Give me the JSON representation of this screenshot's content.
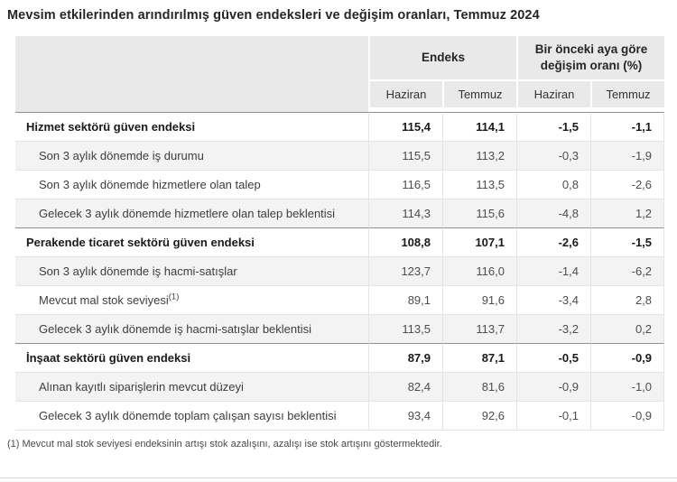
{
  "title": "Mevsim etkilerinden arındırılmış güven endeksleri ve değişim oranları, Temmuz 2024",
  "footnote": "(1) Mevcut mal stok seviyesi endeksinin artışı stok azalışını, azalışı ise stok artışını göstermektedir.",
  "colors": {
    "header_bg": "#e9e9e9",
    "stripe_bg": "#f3f3f3",
    "row_border": "#e4e4e4",
    "section_border": "#8f8f8f",
    "title_text": "#262626",
    "body_text": "#404040",
    "bottom_divider": "#d6d6d6"
  },
  "chart_data": {
    "type": "table",
    "title": "Mevsim etkilerinden arındırılmış güven endeksleri ve değişim oranları, Temmuz 2024",
    "column_groups": [
      {
        "label": "Endeks",
        "span": 2
      },
      {
        "label": "Bir önceki aya göre değişim oranı (%)",
        "span": 2
      }
    ],
    "columns": [
      "Haziran",
      "Temmuz",
      "Haziran",
      "Temmuz"
    ],
    "rows": [
      {
        "label": "Hizmet sektörü güven endeksi",
        "section": true,
        "values": [
          115.4,
          114.1,
          -1.5,
          -1.1
        ],
        "display": [
          "115,4",
          "114,1",
          "-1,5",
          "-1,1"
        ]
      },
      {
        "label": "Son 3 aylık dönemde iş durumu",
        "section": false,
        "values": [
          115.5,
          113.2,
          -0.3,
          -1.9
        ],
        "display": [
          "115,5",
          "113,2",
          "-0,3",
          "-1,9"
        ]
      },
      {
        "label": "Son 3 aylık dönemde hizmetlere olan talep",
        "section": false,
        "values": [
          116.5,
          113.5,
          0.8,
          -2.6
        ],
        "display": [
          "116,5",
          "113,5",
          "0,8",
          "-2,6"
        ]
      },
      {
        "label": "Gelecek 3 aylık dönemde hizmetlere olan talep beklentisi",
        "section": false,
        "values": [
          114.3,
          115.6,
          -4.8,
          1.2
        ],
        "display": [
          "114,3",
          "115,6",
          "-4,8",
          "1,2"
        ]
      },
      {
        "label": "Perakende ticaret sektörü güven endeksi",
        "section": true,
        "values": [
          108.8,
          107.1,
          -2.6,
          -1.5
        ],
        "display": [
          "108,8",
          "107,1",
          "-2,6",
          "-1,5"
        ]
      },
      {
        "label": "Son 3 aylık dönemde iş hacmi-satışlar",
        "section": false,
        "values": [
          123.7,
          116.0,
          -1.4,
          -6.2
        ],
        "display": [
          "123,7",
          "116,0",
          "-1,4",
          "-6,2"
        ]
      },
      {
        "label": "Mevcut mal stok seviyesi",
        "sup": "(1)",
        "section": false,
        "values": [
          89.1,
          91.6,
          -3.4,
          2.8
        ],
        "display": [
          "89,1",
          "91,6",
          "-3,4",
          "2,8"
        ]
      },
      {
        "label": "Gelecek 3 aylık dönemde iş hacmi-satışlar beklentisi",
        "section": false,
        "values": [
          113.5,
          113.7,
          -3.2,
          0.2
        ],
        "display": [
          "113,5",
          "113,7",
          "-3,2",
          "0,2"
        ]
      },
      {
        "label": "İnşaat sektörü güven endeksi",
        "section": true,
        "values": [
          87.9,
          87.1,
          -0.5,
          -0.9
        ],
        "display": [
          "87,9",
          "87,1",
          "-0,5",
          "-0,9"
        ]
      },
      {
        "label": "Alınan kayıtlı siparişlerin mevcut düzeyi",
        "section": false,
        "values": [
          82.4,
          81.6,
          -0.9,
          -1.0
        ],
        "display": [
          "82,4",
          "81,6",
          "-0,9",
          "-1,0"
        ]
      },
      {
        "label": "Gelecek 3 aylık dönemde toplam çalışan sayısı beklentisi",
        "section": false,
        "values": [
          93.4,
          92.6,
          -0.1,
          -0.9
        ],
        "display": [
          "93,4",
          "92,6",
          "-0,1",
          "-0,9"
        ]
      }
    ]
  }
}
